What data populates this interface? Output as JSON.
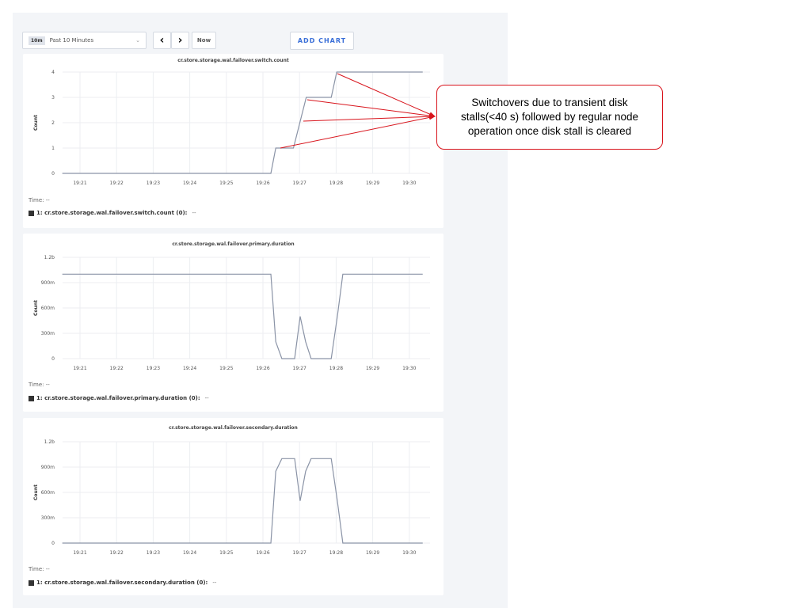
{
  "toolbar": {
    "range_badge": "10m",
    "range_label": "Past 10 Minutes",
    "prev_icon": "chevron-left",
    "next_icon": "chevron-right",
    "now_label": "Now",
    "add_chart_label": "ADD CHART"
  },
  "annotation": {
    "text": "Switchovers due to transient disk stalls(<40 s) followed by regular node operation once disk stall is cleared",
    "color": "#d8141c"
  },
  "chart_data": [
    {
      "type": "line",
      "title": "cr.store.storage.wal.failover.switch.count",
      "ylabel": "Count",
      "ylim": [
        0,
        4
      ],
      "yticks": [
        "0",
        "1",
        "2",
        "3",
        "4"
      ],
      "ytick_values": [
        0,
        1,
        2,
        3,
        4
      ],
      "xticks": [
        "19:21",
        "19:22",
        "19:23",
        "19:24",
        "19:25",
        "19:26",
        "19:27",
        "19:28",
        "19:29",
        "19:30"
      ],
      "series": [
        {
          "x": [
            "19:20:31",
            "19:26:13",
            "19:26:21",
            "19:26:50",
            "19:27:11",
            "19:27:52",
            "19:28:01",
            "19:30:22"
          ],
          "y": [
            0,
            0,
            1,
            1,
            3,
            3,
            4,
            4
          ]
        }
      ],
      "time_label": "Time:",
      "time_value": "--",
      "legend": "1: cr.store.storage.wal.failover.switch.count (0):",
      "legend_value": "--",
      "grid": true,
      "line_color": "#8a93a6"
    },
    {
      "type": "line",
      "title": "cr.store.storage.wal.failover.primary.duration",
      "ylabel": "Count",
      "ylim": [
        0,
        1.2
      ],
      "yticks": [
        "0",
        "300m",
        "600m",
        "900m",
        "1.2b"
      ],
      "ytick_values": [
        0,
        0.3,
        0.6,
        0.9,
        1.2
      ],
      "xticks": [
        "19:21",
        "19:22",
        "19:23",
        "19:24",
        "19:25",
        "19:26",
        "19:27",
        "19:28",
        "19:29",
        "19:30"
      ],
      "series": [
        {
          "x": [
            "19:20:31",
            "19:26:13",
            "19:26:21",
            "19:26:31",
            "19:26:52",
            "19:27:01",
            "19:27:10",
            "19:27:19",
            "19:27:52",
            "19:28:02",
            "19:28:11",
            "19:30:22"
          ],
          "y": [
            1,
            1,
            0.2,
            0,
            0,
            0.5,
            0.2,
            0,
            0,
            0.5,
            1,
            1
          ]
        }
      ],
      "time_label": "Time:",
      "time_value": "--",
      "legend": "1: cr.store.storage.wal.failover.primary.duration (0):",
      "legend_value": "--",
      "grid": true,
      "line_color": "#8a93a6"
    },
    {
      "type": "line",
      "title": "cr.store.storage.wal.failover.secondary.duration",
      "ylabel": "Count",
      "ylim": [
        0,
        1.2
      ],
      "yticks": [
        "0",
        "300m",
        "600m",
        "900m",
        "1.2b"
      ],
      "ytick_values": [
        0,
        0.3,
        0.6,
        0.9,
        1.2
      ],
      "xticks": [
        "19:21",
        "19:22",
        "19:23",
        "19:24",
        "19:25",
        "19:26",
        "19:27",
        "19:28",
        "19:29",
        "19:30"
      ],
      "series": [
        {
          "x": [
            "19:20:31",
            "19:26:13",
            "19:26:21",
            "19:26:31",
            "19:26:52",
            "19:27:01",
            "19:27:10",
            "19:27:19",
            "19:27:52",
            "19:28:02",
            "19:28:11",
            "19:30:22"
          ],
          "y": [
            0,
            0,
            0.85,
            1,
            1,
            0.5,
            0.85,
            1,
            1,
            0.5,
            0,
            0
          ]
        }
      ],
      "time_label": "Time:",
      "time_value": "--",
      "legend": "1: cr.store.storage.wal.failover.secondary.duration (0):",
      "legend_value": "--",
      "grid": true,
      "line_color": "#8a93a6"
    }
  ]
}
